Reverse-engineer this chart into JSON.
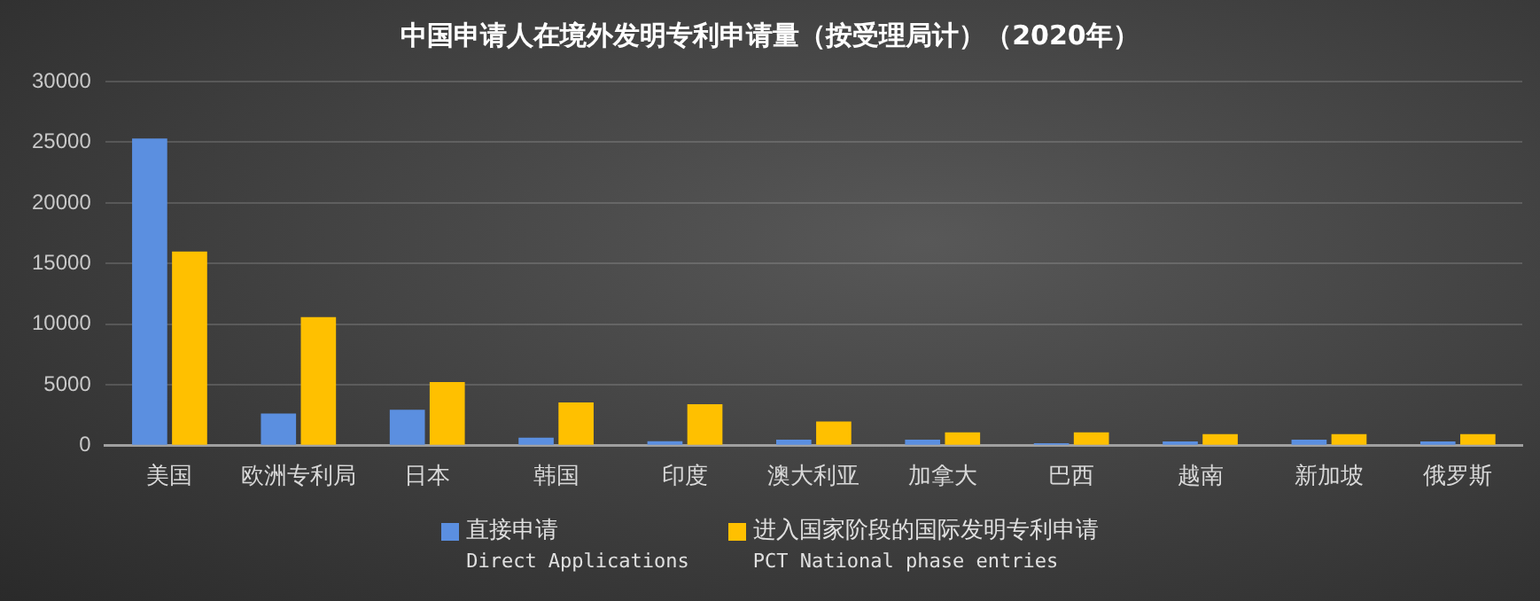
{
  "chart_data": {
    "type": "bar",
    "title": "中国申请人在境外发明专利申请量（按受理局计）（2020年）",
    "categories": [
      "美国",
      "欧洲专利局",
      "日本",
      "韩国",
      "印度",
      "澳大利亚",
      "加拿大",
      "巴西",
      "越南",
      "新加坡",
      "俄罗斯"
    ],
    "series": [
      {
        "name": "直接申请\nDirect Applications",
        "color": "#5b8fe0",
        "values": [
          25300,
          2650,
          2960,
          660,
          360,
          500,
          500,
          200,
          350,
          500,
          350
        ]
      },
      {
        "name": "进入国家阶段的国际发明专利申请\nPCT National phase entries",
        "color": "#ffc000",
        "values": [
          16000,
          10600,
          5250,
          3570,
          3420,
          2000,
          1100,
          1100,
          950,
          950,
          950
        ]
      }
    ],
    "ylim": [
      0,
      30000
    ],
    "yticks": [
      0,
      5000,
      10000,
      15000,
      20000,
      25000,
      30000
    ],
    "grid": "y",
    "legend": "bottom"
  }
}
